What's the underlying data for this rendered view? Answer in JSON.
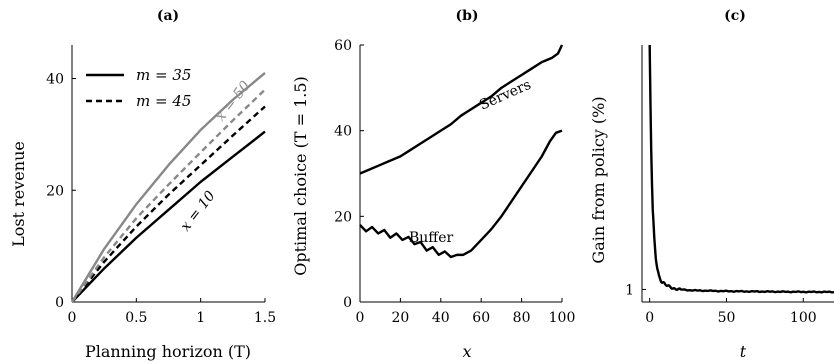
{
  "chart_data": [
    {
      "panel": "(a)",
      "type": "line",
      "xlabel": "Planning horizon (T)",
      "ylabel": "Lost revenue",
      "xlim": [
        0,
        1.5
      ],
      "ylim": [
        0,
        46
      ],
      "xticks": [
        "0",
        "0.5",
        "1",
        "1.5"
      ],
      "yticks": [
        "0",
        "20",
        "40"
      ],
      "grid": false,
      "legend": {
        "position": "top-left",
        "entries": [
          {
            "label": "m = 35",
            "style": "solid"
          },
          {
            "label": "m = 45",
            "style": "dashed"
          }
        ]
      },
      "annotations": [
        "x = 50",
        "x = 10"
      ],
      "series": [
        {
          "m": 35,
          "x_label": "x = 10",
          "color": "#000000",
          "style": "solid",
          "x": [
            0,
            0.25,
            0.5,
            0.75,
            1.0,
            1.25,
            1.5
          ],
          "values": [
            0,
            6.0,
            11.5,
            16.5,
            21.5,
            26.0,
            30.5
          ]
        },
        {
          "m": 45,
          "x_label": "x = 10",
          "color": "#000000",
          "style": "dashed",
          "x": [
            0,
            0.25,
            0.5,
            0.75,
            1.0,
            1.25,
            1.5
          ],
          "values": [
            0,
            7.2,
            13.5,
            19.2,
            24.5,
            29.8,
            35.0
          ]
        },
        {
          "m": 45,
          "x_label": "x = 50",
          "color": "#888888",
          "style": "dashed",
          "x": [
            0,
            0.25,
            0.5,
            0.75,
            1.0,
            1.25,
            1.5
          ],
          "values": [
            0,
            8.0,
            15.0,
            21.0,
            26.8,
            32.5,
            38.0
          ]
        },
        {
          "m": 35,
          "x_label": "x = 50",
          "color": "#888888",
          "style": "solid",
          "x": [
            0,
            0.25,
            0.5,
            0.75,
            1.0,
            1.25,
            1.5
          ],
          "values": [
            0,
            9.5,
            17.5,
            24.5,
            30.8,
            36.2,
            41.0
          ]
        }
      ]
    },
    {
      "panel": "(b)",
      "type": "line",
      "xlabel": "x",
      "ylabel": "Optimal choice (T = 1.5)",
      "xlim": [
        0,
        100
      ],
      "ylim": [
        0,
        60
      ],
      "xticks": [
        "0",
        "20",
        "40",
        "60",
        "80",
        "100"
      ],
      "yticks": [
        "0",
        "20",
        "40",
        "60"
      ],
      "grid": false,
      "annotations": [
        "Servers",
        "Buffer"
      ],
      "series": [
        {
          "label": "Servers",
          "color": "#000000",
          "x": [
            0,
            5,
            10,
            15,
            20,
            25,
            30,
            35,
            40,
            45,
            50,
            55,
            60,
            65,
            70,
            75,
            80,
            85,
            90,
            95,
            98,
            100
          ],
          "values": [
            30,
            31,
            32,
            33,
            34,
            35.5,
            37,
            38.5,
            40,
            41.5,
            43.5,
            45,
            46.5,
            48,
            50,
            51.5,
            53,
            54.5,
            56,
            57,
            58,
            60
          ]
        },
        {
          "label": "Buffer",
          "color": "#000000",
          "x": [
            0,
            3,
            6,
            9,
            12,
            15,
            18,
            21,
            24,
            27,
            30,
            33,
            36,
            39,
            42,
            45,
            48,
            51,
            55,
            60,
            65,
            70,
            75,
            80,
            85,
            90,
            94,
            97,
            100
          ],
          "values": [
            18,
            16.5,
            17.5,
            16,
            16.8,
            15,
            16,
            14.5,
            15.2,
            13.5,
            14,
            12,
            12.8,
            11,
            11.8,
            10.5,
            11,
            11,
            12,
            14.5,
            17,
            20,
            23.5,
            27,
            30.5,
            34,
            37.5,
            39.5,
            40
          ]
        }
      ]
    },
    {
      "panel": "(c)",
      "type": "line",
      "xlabel": "t",
      "ylabel": "Gain from policy (%)",
      "xlim": [
        -5,
        120
      ],
      "yticks": [
        "1"
      ],
      "xticks": [
        "0",
        "50",
        "100"
      ],
      "grid": false,
      "series": [
        {
          "color": "#000000",
          "x": [
            0,
            0.5,
            1,
            1.5,
            2,
            3,
            4,
            5,
            6,
            8,
            10,
            12,
            15,
            20,
            25,
            30,
            40,
            50,
            60,
            70,
            80,
            90,
            100,
            110,
            120
          ],
          "values": [
            4.5,
            3.7,
            3.0,
            2.5,
            2.1,
            1.7,
            1.45,
            1.3,
            1.2,
            1.12,
            1.07,
            1.04,
            1.02,
            1.0,
            0.99,
            0.985,
            0.98,
            0.975,
            0.972,
            0.97,
            0.968,
            0.966,
            0.965,
            0.964,
            0.963
          ]
        }
      ]
    }
  ]
}
